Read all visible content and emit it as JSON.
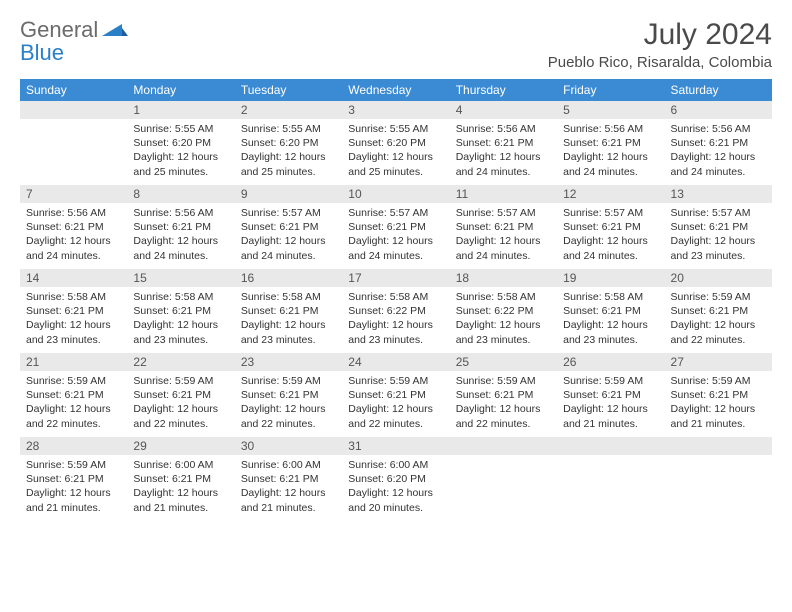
{
  "brand": {
    "line1": "General",
    "line2": "Blue"
  },
  "title": "July 2024",
  "location": "Pueblo Rico, Risaralda, Colombia",
  "colors": {
    "header_bg": "#3b8bd4",
    "header_text": "#ffffff",
    "daynum_bg": "#e9e9e9",
    "row_border": "#3b8bd4",
    "logo_gray": "#6b6b6b",
    "logo_blue": "#2a7fc9"
  },
  "weekdays": [
    "Sunday",
    "Monday",
    "Tuesday",
    "Wednesday",
    "Thursday",
    "Friday",
    "Saturday"
  ],
  "weeks": [
    [
      null,
      {
        "n": "1",
        "sr": "5:55 AM",
        "ss": "6:20 PM",
        "dl": "12 hours and 25 minutes."
      },
      {
        "n": "2",
        "sr": "5:55 AM",
        "ss": "6:20 PM",
        "dl": "12 hours and 25 minutes."
      },
      {
        "n": "3",
        "sr": "5:55 AM",
        "ss": "6:20 PM",
        "dl": "12 hours and 25 minutes."
      },
      {
        "n": "4",
        "sr": "5:56 AM",
        "ss": "6:21 PM",
        "dl": "12 hours and 24 minutes."
      },
      {
        "n": "5",
        "sr": "5:56 AM",
        "ss": "6:21 PM",
        "dl": "12 hours and 24 minutes."
      },
      {
        "n": "6",
        "sr": "5:56 AM",
        "ss": "6:21 PM",
        "dl": "12 hours and 24 minutes."
      }
    ],
    [
      {
        "n": "7",
        "sr": "5:56 AM",
        "ss": "6:21 PM",
        "dl": "12 hours and 24 minutes."
      },
      {
        "n": "8",
        "sr": "5:56 AM",
        "ss": "6:21 PM",
        "dl": "12 hours and 24 minutes."
      },
      {
        "n": "9",
        "sr": "5:57 AM",
        "ss": "6:21 PM",
        "dl": "12 hours and 24 minutes."
      },
      {
        "n": "10",
        "sr": "5:57 AM",
        "ss": "6:21 PM",
        "dl": "12 hours and 24 minutes."
      },
      {
        "n": "11",
        "sr": "5:57 AM",
        "ss": "6:21 PM",
        "dl": "12 hours and 24 minutes."
      },
      {
        "n": "12",
        "sr": "5:57 AM",
        "ss": "6:21 PM",
        "dl": "12 hours and 24 minutes."
      },
      {
        "n": "13",
        "sr": "5:57 AM",
        "ss": "6:21 PM",
        "dl": "12 hours and 23 minutes."
      }
    ],
    [
      {
        "n": "14",
        "sr": "5:58 AM",
        "ss": "6:21 PM",
        "dl": "12 hours and 23 minutes."
      },
      {
        "n": "15",
        "sr": "5:58 AM",
        "ss": "6:21 PM",
        "dl": "12 hours and 23 minutes."
      },
      {
        "n": "16",
        "sr": "5:58 AM",
        "ss": "6:21 PM",
        "dl": "12 hours and 23 minutes."
      },
      {
        "n": "17",
        "sr": "5:58 AM",
        "ss": "6:22 PM",
        "dl": "12 hours and 23 minutes."
      },
      {
        "n": "18",
        "sr": "5:58 AM",
        "ss": "6:22 PM",
        "dl": "12 hours and 23 minutes."
      },
      {
        "n": "19",
        "sr": "5:58 AM",
        "ss": "6:21 PM",
        "dl": "12 hours and 23 minutes."
      },
      {
        "n": "20",
        "sr": "5:59 AM",
        "ss": "6:21 PM",
        "dl": "12 hours and 22 minutes."
      }
    ],
    [
      {
        "n": "21",
        "sr": "5:59 AM",
        "ss": "6:21 PM",
        "dl": "12 hours and 22 minutes."
      },
      {
        "n": "22",
        "sr": "5:59 AM",
        "ss": "6:21 PM",
        "dl": "12 hours and 22 minutes."
      },
      {
        "n": "23",
        "sr": "5:59 AM",
        "ss": "6:21 PM",
        "dl": "12 hours and 22 minutes."
      },
      {
        "n": "24",
        "sr": "5:59 AM",
        "ss": "6:21 PM",
        "dl": "12 hours and 22 minutes."
      },
      {
        "n": "25",
        "sr": "5:59 AM",
        "ss": "6:21 PM",
        "dl": "12 hours and 22 minutes."
      },
      {
        "n": "26",
        "sr": "5:59 AM",
        "ss": "6:21 PM",
        "dl": "12 hours and 21 minutes."
      },
      {
        "n": "27",
        "sr": "5:59 AM",
        "ss": "6:21 PM",
        "dl": "12 hours and 21 minutes."
      }
    ],
    [
      {
        "n": "28",
        "sr": "5:59 AM",
        "ss": "6:21 PM",
        "dl": "12 hours and 21 minutes."
      },
      {
        "n": "29",
        "sr": "6:00 AM",
        "ss": "6:21 PM",
        "dl": "12 hours and 21 minutes."
      },
      {
        "n": "30",
        "sr": "6:00 AM",
        "ss": "6:21 PM",
        "dl": "12 hours and 21 minutes."
      },
      {
        "n": "31",
        "sr": "6:00 AM",
        "ss": "6:20 PM",
        "dl": "12 hours and 20 minutes."
      },
      null,
      null,
      null
    ]
  ],
  "labels": {
    "sunrise": "Sunrise:",
    "sunset": "Sunset:",
    "daylight": "Daylight:"
  }
}
